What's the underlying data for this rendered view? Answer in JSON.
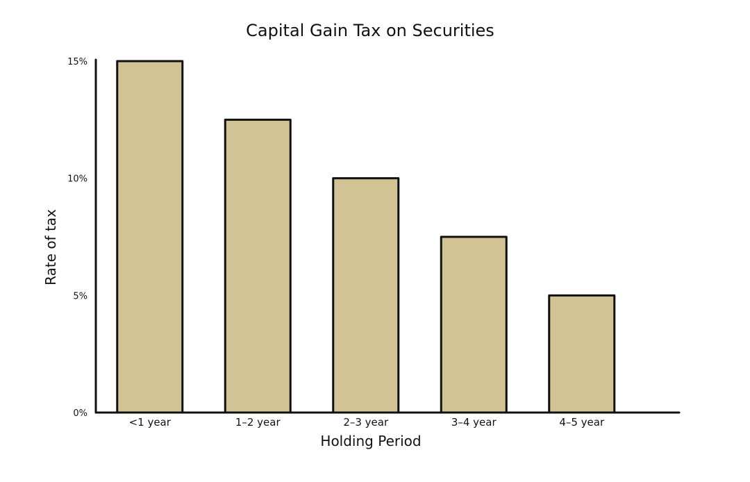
{
  "chart_data": {
    "type": "bar",
    "title": "Capital Gain Tax on Securities",
    "xlabel": "Holding Period",
    "ylabel": "Rate of tax",
    "categories": [
      "<1 year",
      "1–2 year",
      "2–3 year",
      "3–4 year",
      "4–5 year"
    ],
    "values": [
      15,
      12.5,
      10,
      7.5,
      5
    ],
    "ylim": [
      0,
      15
    ],
    "yticks": [
      0,
      5,
      10,
      15
    ],
    "ytick_labels": [
      "0%",
      "5%",
      "10%",
      "15%"
    ],
    "grid": false,
    "legend": "none",
    "colors": {
      "bar_fill": "#d1c393",
      "bar_stroke": "#111111",
      "axis": "#111111"
    }
  }
}
